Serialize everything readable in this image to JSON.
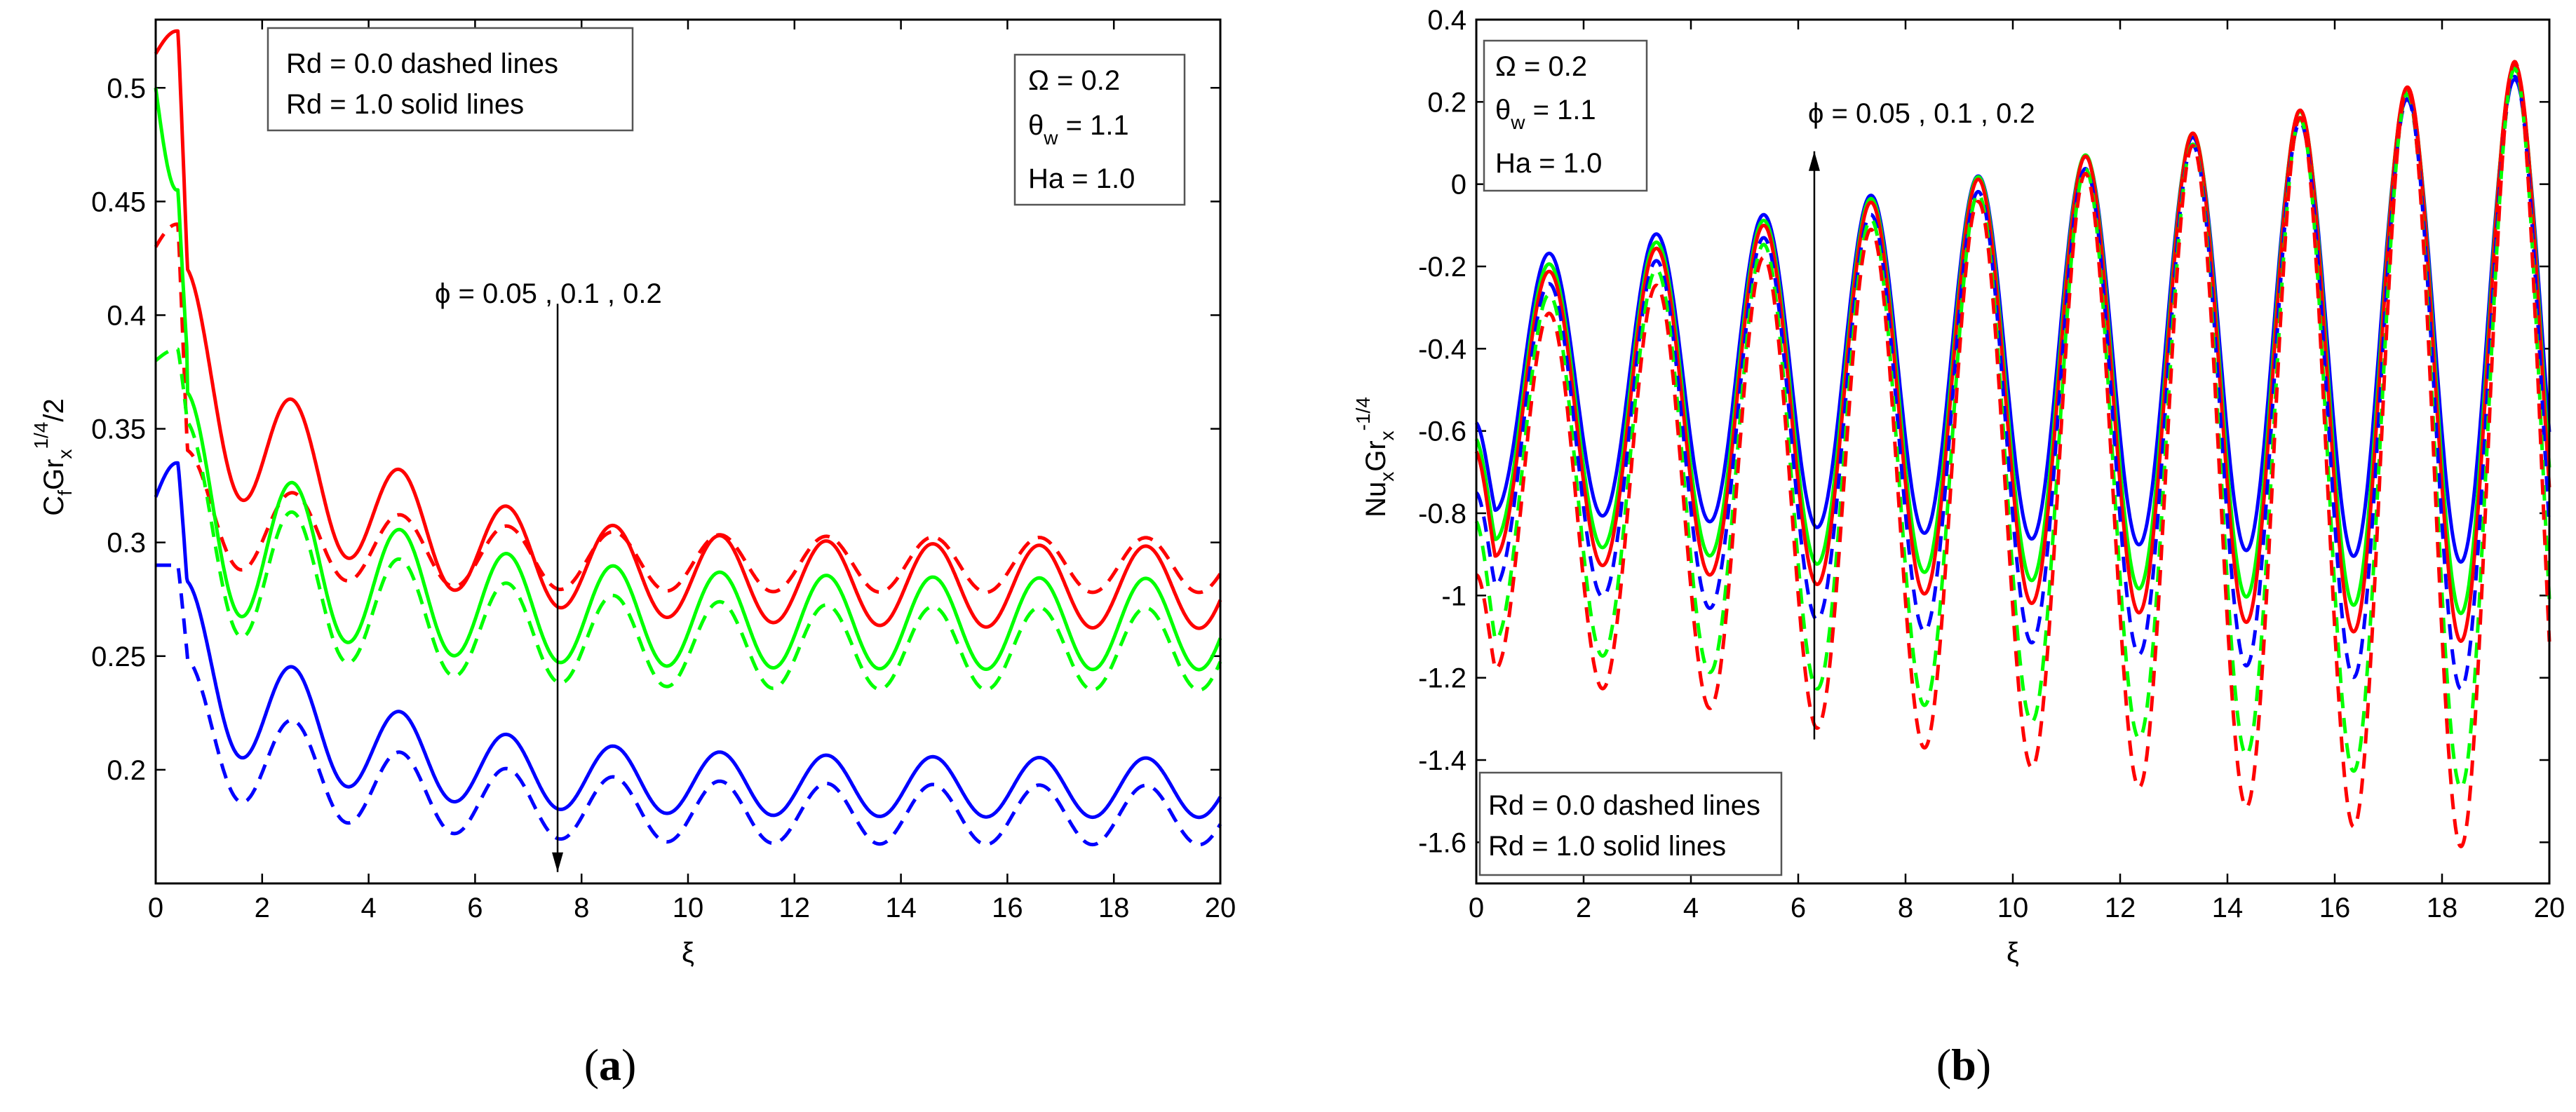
{
  "chart_data": [
    {
      "type": "line",
      "panel_label": "(a)",
      "caption": {
        "open": "(",
        "letter": "a",
        "close": ")"
      },
      "xlabel": "ξ",
      "ylabel": {
        "base": "C",
        "sub1": "f",
        "mid": "Gr",
        "sub2": "x",
        "sup": "1/4",
        "tail": "/2"
      },
      "xlim": [
        0,
        20
      ],
      "ylim": [
        0.15,
        0.53
      ],
      "xticks": [
        "0",
        "2",
        "4",
        "6",
        "8",
        "10",
        "12",
        "14",
        "16",
        "18",
        "20"
      ],
      "yticks": [
        "0.2",
        "0.25",
        "0.3",
        "0.35",
        "0.4",
        "0.45",
        "0.5"
      ],
      "legend_lines": [
        "Rd = 0.0  dashed lines",
        "Rd = 1.0  solid lines"
      ],
      "params": {
        "omega": "Ω  = 0.2",
        "theta_base": "θ",
        "theta_sub": "w",
        "theta_val": " = 1.1",
        "ha": "Ha  = 1.0"
      },
      "annotation": "ϕ = 0.05 , 0.1 , 0.2",
      "annotation_arrow": {
        "x": 7.55,
        "from_y": 0.405,
        "to_y": 0.155
      },
      "model": {
        "period": 2.0,
        "phase_x": 0.6
      },
      "series": [
        {
          "name": "ϕ = 0.05, Rd = 1.0",
          "color": "#ff0000",
          "dash": false,
          "start": 0.515,
          "peak0": 0.525,
          "center_a": 0.28,
          "center_b": 0.12,
          "center_tau": 3.2,
          "amp_a": 0.018,
          "amp_b": 0.028,
          "amp_tau": 2.8
        },
        {
          "name": "ϕ = 0.05, Rd = 0.0",
          "color": "#ff0000",
          "dash": true,
          "start": 0.43,
          "peak0": 0.44,
          "center_a": 0.29,
          "center_b": 0.032,
          "center_tau": 3.0,
          "amp_a": 0.012,
          "amp_b": 0.015,
          "amp_tau": 3.0
        },
        {
          "name": "ϕ = 0.1, Rd = 1.0",
          "color": "#00ff00",
          "dash": false,
          "start": 0.5,
          "peak0": 0.455,
          "center_a": 0.264,
          "center_b": 0.07,
          "center_tau": 3.0,
          "amp_a": 0.02,
          "amp_b": 0.03,
          "amp_tau": 3.0
        },
        {
          "name": "ϕ = 0.1, Rd = 0.0",
          "color": "#00ff00",
          "dash": true,
          "start": 0.38,
          "peak0": 0.385,
          "center_a": 0.253,
          "center_b": 0.07,
          "center_tau": 3.0,
          "amp_a": 0.018,
          "amp_b": 0.03,
          "amp_tau": 3.0
        },
        {
          "name": "ϕ = 0.2, Rd = 1.0",
          "color": "#0000ff",
          "dash": false,
          "start": 0.32,
          "peak0": 0.335,
          "center_a": 0.192,
          "center_b": 0.07,
          "center_tau": 3.0,
          "amp_a": 0.013,
          "amp_b": 0.025,
          "amp_tau": 3.0
        },
        {
          "name": "ϕ = 0.2, Rd = 0.0",
          "color": "#0000ff",
          "dash": true,
          "start": 0.29,
          "peak0": 0.29,
          "center_a": 0.18,
          "center_b": 0.05,
          "center_tau": 3.0,
          "amp_a": 0.013,
          "amp_b": 0.018,
          "amp_tau": 3.0
        }
      ]
    },
    {
      "type": "line",
      "panel_label": "(b)",
      "caption": {
        "open": "(",
        "letter": "b",
        "close": ")"
      },
      "xlabel": "ξ",
      "ylabel": {
        "base": "Nu",
        "sub1": "x",
        "mid": "Gr",
        "sub2": "x",
        "sup": "-1/4",
        "tail": ""
      },
      "xlim": [
        0,
        20
      ],
      "ylim": [
        -1.7,
        0.4
      ],
      "xticks": [
        "0",
        "2",
        "4",
        "6",
        "8",
        "10",
        "12",
        "14",
        "16",
        "18",
        "20"
      ],
      "yticks": [
        "-1.6",
        "-1.4",
        "-1.2",
        "-1",
        "-0.8",
        "-0.6",
        "-0.4",
        "-0.2",
        "0",
        "0.2",
        "0.4"
      ],
      "legend_lines": [
        "Rd = 0.0  dashed lines",
        "Rd = 1.0  solid lines"
      ],
      "params": {
        "omega": "Ω  = 0.2",
        "theta_base": "θ",
        "theta_sub": "w",
        "theta_val": " = 1.1",
        "ha": "Ha  = 1.0"
      },
      "annotation": "ϕ = 0.05 , 0.1 , 0.2",
      "annotation_arrow": {
        "x": 6.3,
        "from_y": -1.35,
        "to_y": 0.08
      },
      "model": {
        "period": 2.0,
        "peak_phase": 1.35
      },
      "series": [
        {
          "name": "ϕ = 0.2, Rd = 1.0",
          "color": "#0000ff",
          "dash": false,
          "start": -0.58,
          "peak_first": -0.2,
          "peak_last": 0.27,
          "trough_first": -0.79,
          "trough_last": -0.93
        },
        {
          "name": "ϕ = 0.1, Rd = 1.0",
          "color": "#00ff00",
          "dash": false,
          "start": -0.62,
          "peak_first": -0.23,
          "peak_last": 0.3,
          "trough_first": -0.86,
          "trough_last": -1.06
        },
        {
          "name": "ϕ = 0.05, Rd = 1.0",
          "color": "#ff0000",
          "dash": false,
          "start": -0.65,
          "peak_first": -0.25,
          "peak_last": 0.31,
          "trough_first": -0.9,
          "trough_last": -1.13
        },
        {
          "name": "ϕ = 0.2, Rd = 0.0",
          "color": "#0000ff",
          "dash": true,
          "start": -0.75,
          "peak_first": -0.28,
          "peak_last": 0.28,
          "trough_first": -0.97,
          "trough_last": -1.25
        },
        {
          "name": "ϕ = 0.1, Rd = 0.0",
          "color": "#00ff00",
          "dash": true,
          "start": -0.82,
          "peak_first": -0.31,
          "peak_last": 0.3,
          "trough_first": -1.1,
          "trough_last": -1.5
        },
        {
          "name": "ϕ = 0.05, Rd = 0.0",
          "color": "#ff0000",
          "dash": true,
          "start": -0.95,
          "peak_first": -0.36,
          "peak_last": 0.32,
          "trough_first": -1.17,
          "trough_last": -1.65
        }
      ]
    }
  ]
}
